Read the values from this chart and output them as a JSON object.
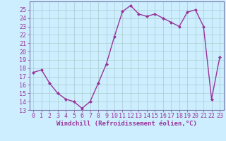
{
  "x": [
    0,
    1,
    2,
    3,
    4,
    5,
    6,
    7,
    8,
    9,
    10,
    11,
    12,
    13,
    14,
    15,
    16,
    17,
    18,
    19,
    20,
    21,
    22,
    23
  ],
  "y": [
    17.5,
    17.8,
    16.2,
    15.0,
    14.3,
    14.0,
    13.2,
    14.0,
    16.2,
    18.5,
    21.8,
    24.8,
    25.5,
    24.5,
    24.2,
    24.5,
    24.0,
    23.5,
    23.0,
    24.7,
    25.0,
    23.0,
    14.3,
    19.3
  ],
  "line_color": "#993399",
  "marker": "D",
  "markersize": 2.0,
  "linewidth": 1.0,
  "bg_color": "#cceeff",
  "grid_color": "#aacccc",
  "xlim": [
    -0.5,
    23.5
  ],
  "ylim": [
    13,
    26
  ],
  "yticks": [
    13,
    14,
    15,
    16,
    17,
    18,
    19,
    20,
    21,
    22,
    23,
    24,
    25
  ],
  "xticks": [
    0,
    1,
    2,
    3,
    4,
    5,
    6,
    7,
    8,
    9,
    10,
    11,
    12,
    13,
    14,
    15,
    16,
    17,
    18,
    19,
    20,
    21,
    22,
    23
  ],
  "xlabel": "Windchill (Refroidissement éolien,°C)",
  "xlabel_fontsize": 6.5,
  "tick_fontsize": 6.0,
  "border_color": "#7777aa"
}
